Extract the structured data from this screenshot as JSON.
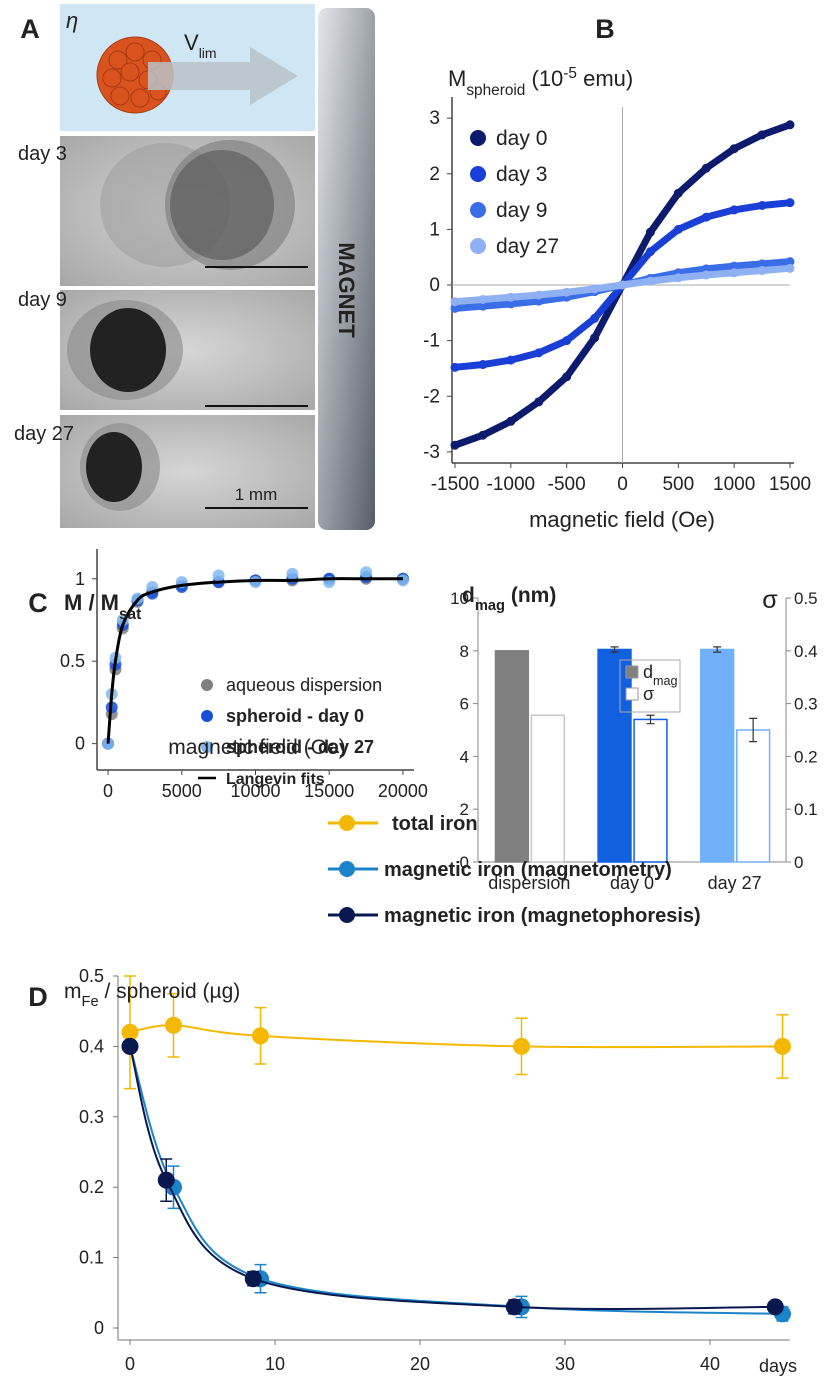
{
  "panel_a": {
    "label": "A",
    "eta": "η",
    "velocity": "V",
    "velocity_sub": "lim",
    "days": [
      "day 3",
      "day 9",
      "day 27"
    ],
    "scale_bar": "1 mm",
    "magnet": "MAGNET"
  },
  "chart_data": [
    {
      "type": "scatter",
      "panel_label": "B",
      "y_label": [
        "M",
        "spheroid",
        " (10",
        "-5",
        " emu)"
      ],
      "x_label": "magnetic field (Oe)",
      "x": [
        -1500,
        -1250,
        -1000,
        -750,
        -500,
        -250,
        0,
        250,
        500,
        750,
        1000,
        1250,
        1500
      ],
      "series": [
        {
          "name": "day 0",
          "color": "#0d1b6e",
          "values": [
            -2.88,
            -2.7,
            -2.45,
            -2.1,
            -1.65,
            -0.95,
            0,
            0.95,
            1.65,
            2.1,
            2.45,
            2.7,
            2.88
          ]
        },
        {
          "name": "day 3",
          "color": "#1a3fd6",
          "values": [
            -1.48,
            -1.43,
            -1.35,
            -1.22,
            -1.0,
            -0.6,
            0,
            0.6,
            1.0,
            1.22,
            1.35,
            1.43,
            1.48
          ]
        },
        {
          "name": "day 9",
          "color": "#3a6de8",
          "values": [
            -0.42,
            -0.38,
            -0.34,
            -0.29,
            -0.22,
            -0.12,
            0,
            0.12,
            0.22,
            0.29,
            0.34,
            0.38,
            0.42
          ]
        },
        {
          "name": "day 27",
          "color": "#8fb0f2",
          "values": [
            -0.3,
            -0.26,
            -0.22,
            -0.18,
            -0.13,
            -0.07,
            0,
            0.07,
            0.13,
            0.18,
            0.22,
            0.26,
            0.3
          ]
        }
      ],
      "xlim": [
        -1500,
        1500
      ],
      "xticks": [
        -1500,
        -1000,
        -500,
        0,
        500,
        1000,
        1500
      ],
      "ylim": [
        -3.2,
        3.2
      ],
      "yticks": [
        -3,
        -2,
        -1,
        0,
        1,
        2,
        3
      ],
      "grid": false
    },
    {
      "type": "scatter",
      "panel_label": "C",
      "y_label": [
        "M / M",
        "sat"
      ],
      "x_label": "magnetic field (Oe)",
      "x": [
        0,
        250,
        500,
        1000,
        2000,
        3000,
        5000,
        7500,
        10000,
        12500,
        15000,
        17500,
        20000
      ],
      "series": [
        {
          "name": "aqueous dispersion",
          "color": "#808080",
          "style": "dots",
          "values": [
            0,
            0.18,
            0.45,
            0.7,
            0.86,
            0.92,
            0.96,
            0.98,
            0.99,
            0.99,
            1.0,
            1.0,
            1.0
          ]
        },
        {
          "name": "spheroid - day 0",
          "color": "#1550d8",
          "style": "dots",
          "values": [
            0,
            0.22,
            0.48,
            0.72,
            0.87,
            0.91,
            0.95,
            0.98,
            0.99,
            1.0,
            1.0,
            1.01,
            1.0
          ]
        },
        {
          "name": "spheroid - day 27",
          "color": "#80b8f0",
          "style": "dots",
          "values": [
            0,
            0.3,
            0.52,
            0.75,
            0.88,
            0.95,
            0.98,
            1.02,
            0.98,
            1.03,
            0.98,
            1.04,
            0.99
          ]
        },
        {
          "name": "Langevin fits",
          "color": "#000000",
          "style": "line",
          "values": [
            0,
            0.3,
            0.5,
            0.72,
            0.87,
            0.92,
            0.96,
            0.98,
            0.99,
            0.99,
            1.0,
            1.0,
            1.0
          ]
        }
      ],
      "xlim": [
        -750,
        20480
      ],
      "xticks": [
        0,
        5000,
        10000,
        15000,
        20000
      ],
      "ylim": [
        -0.16,
        1.12
      ],
      "yticks": [
        0,
        0.5,
        1
      ],
      "grid": false
    },
    {
      "type": "bar",
      "y_label": [
        "d",
        "mag",
        " (nm)"
      ],
      "y2_label": "σ",
      "categories": [
        "dispersion",
        "day 0",
        "day 27"
      ],
      "series": [
        {
          "name": "d",
          "name_sub": "mag",
          "color": "#808080",
          "bar_colors": [
            "#808080",
            "#1060e0",
            "#70b0f8"
          ],
          "values": [
            8,
            8.05,
            8.05
          ],
          "errors": [
            null,
            0.1,
            0.1
          ]
        },
        {
          "name": "σ",
          "axis": "y2",
          "color": "#ffffff",
          "bar_colors": [
            "#c8c8c8",
            "#1060e0",
            "#70b0f8"
          ],
          "values": [
            0.278,
            0.27,
            0.25
          ],
          "errors": [
            null,
            0.008,
            0.022
          ]
        }
      ],
      "ylim": [
        0,
        10
      ],
      "yticks": [
        0,
        2,
        4,
        6,
        8,
        10
      ],
      "y2lim": [
        0,
        0.5
      ],
      "y2ticks": [
        0,
        0.1,
        0.2,
        0.3,
        0.4,
        0.5
      ]
    },
    {
      "type": "line",
      "panel_label": "D",
      "y_label": [
        "m",
        "Fe",
        " / spheroid (µg)"
      ],
      "x_unit": "days",
      "series": [
        {
          "name": "total iron",
          "color": "#f5b800",
          "x": [
            0,
            3,
            9,
            27,
            45
          ],
          "values": [
            0.42,
            0.43,
            0.415,
            0.4,
            0.4
          ],
          "errors": [
            0.08,
            0.045,
            0.04,
            0.04,
            0.045
          ]
        },
        {
          "name": "magnetic iron (magnetometry)",
          "color": "#1b84c8",
          "x": [
            0,
            3,
            9,
            27,
            45
          ],
          "values": [
            0.4,
            0.2,
            0.07,
            0.03,
            0.02
          ],
          "errors": [
            0,
            0.03,
            0.02,
            0.015,
            0.01
          ]
        },
        {
          "name": "magnetic iron (magnetophoresis)",
          "color": "#0a1850",
          "x": [
            0,
            2.5,
            8.5,
            26.5,
            44.5
          ],
          "values": [
            0.4,
            0.21,
            0.07,
            0.03,
            0.03
          ],
          "errors": [
            0,
            0.03,
            0.01,
            0.01,
            0.005
          ]
        }
      ],
      "xlim": [
        0,
        45.5
      ],
      "xticks": [
        0,
        10,
        20,
        30,
        40
      ],
      "ylim": [
        0,
        0.5
      ],
      "yticks": [
        0,
        0.1,
        0.2,
        0.3,
        0.4,
        0.5
      ]
    }
  ]
}
